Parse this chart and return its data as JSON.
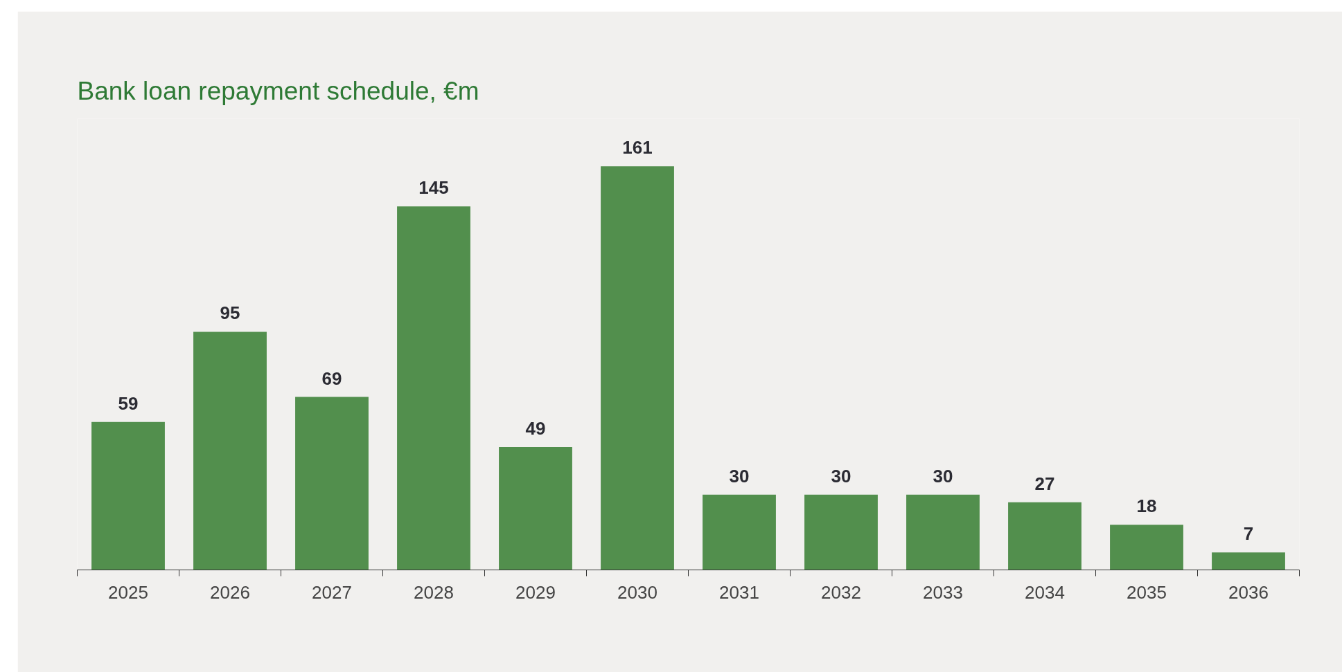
{
  "chart_data": {
    "type": "bar",
    "title": "Bank loan repayment schedule, €m",
    "categories": [
      "2025",
      "2026",
      "2027",
      "2028",
      "2029",
      "2030",
      "2031",
      "2032",
      "2033",
      "2034",
      "2035",
      "2036"
    ],
    "values": [
      59,
      95,
      69,
      145,
      49,
      161,
      30,
      30,
      30,
      27,
      18,
      7
    ],
    "color": "#528f4d",
    "data_labels": true,
    "grid": false
  }
}
